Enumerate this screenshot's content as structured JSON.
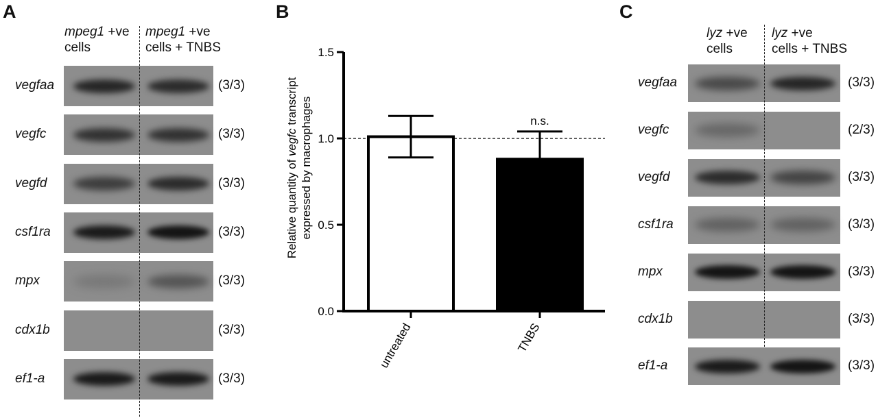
{
  "panels": {
    "a": "A",
    "b": "B",
    "c": "C"
  },
  "panel_a": {
    "col1_italic": "mpeg1",
    "col1_rest": " +ve",
    "col1_line2": "cells",
    "col2_italic": "mpeg1",
    "col2_rest": " +ve",
    "col2_line2": "cells + TNBS",
    "rows": [
      {
        "gene": "vegfaa",
        "count": "(3/3)",
        "band_left": 0.85,
        "band_right": 0.8
      },
      {
        "gene": "vegfc",
        "count": "(3/3)",
        "band_left": 0.75,
        "band_right": 0.75
      },
      {
        "gene": "vegfd",
        "count": "(3/3)",
        "band_left": 0.65,
        "band_right": 0.8
      },
      {
        "gene": "csf1ra",
        "count": "(3/3)",
        "band_left": 0.95,
        "band_right": 1.0
      },
      {
        "gene": "mpx",
        "count": "(3/3)",
        "band_left": 0.15,
        "band_right": 0.45
      },
      {
        "gene": "cdx1b",
        "count": "(3/3)",
        "band_left": 0.0,
        "band_right": 0.0
      },
      {
        "gene": "ef1-a",
        "count": "(3/3)",
        "band_left": 0.95,
        "band_right": 0.95
      }
    ]
  },
  "panel_b": {
    "chart_data": {
      "type": "bar",
      "categories": [
        "untreated",
        "TNBS"
      ],
      "values": [
        1.01,
        0.88
      ],
      "error": [
        0.12,
        0.16
      ],
      "ylabel_part1": "Relative quantity of ",
      "ylabel_italic": "vegfc",
      "ylabel_part2": " transcript",
      "ylabel_line2": "expressed by macrophages",
      "ylim": [
        0.0,
        1.5
      ],
      "yticks": [
        "0.0",
        "0.5",
        "1.0",
        "1.5"
      ],
      "reference_line": 1.0,
      "annotation": "n.s.",
      "colors": [
        "#ffffff",
        "#000000"
      ]
    }
  },
  "panel_c": {
    "col1_italic": "lyz",
    "col1_rest": " +ve",
    "col1_line2": "cells",
    "col2_italic": "lyz",
    "col2_rest": " +ve",
    "col2_line2": "cells + TNBS",
    "rows": [
      {
        "gene": "vegfaa",
        "count": "(3/3)",
        "band_left": 0.55,
        "band_right": 0.85
      },
      {
        "gene": "vegfc",
        "count": "(2/3)",
        "band_left": 0.3,
        "band_right": 0.0
      },
      {
        "gene": "vegfd",
        "count": "(3/3)",
        "band_left": 0.8,
        "band_right": 0.6
      },
      {
        "gene": "csf1ra",
        "count": "(3/3)",
        "band_left": 0.35,
        "band_right": 0.35
      },
      {
        "gene": "mpx",
        "count": "(3/3)",
        "band_left": 1.0,
        "band_right": 1.0
      },
      {
        "gene": "cdx1b",
        "count": "(3/3)",
        "band_left": 0.0,
        "band_right": 0.0
      },
      {
        "gene": "ef1-a",
        "count": "(3/3)",
        "band_left": 0.95,
        "band_right": 1.0
      }
    ]
  }
}
